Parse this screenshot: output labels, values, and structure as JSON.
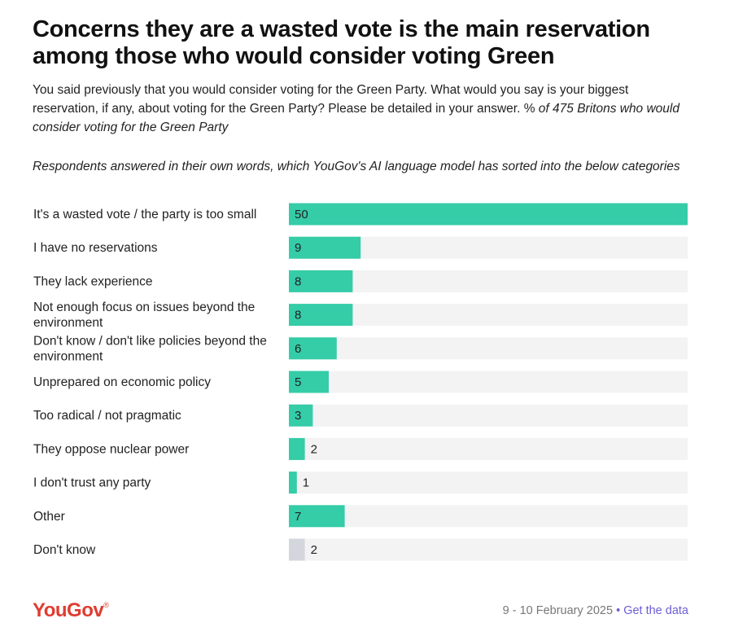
{
  "header": {
    "title_line1": "Concerns they are a wasted vote is the main reservation",
    "title_line2": "among those who would consider voting Green",
    "subtitle": "You said previously that you would consider voting for the Green Party. What would you say is your biggest reservation, if any, about voting for the Green Party? Please be detailed in your answer. % of 475 Britons who would consider voting for the Green Party",
    "subtitle_plain": "You said previously that you would consider voting for the Green Party. What would you say is your biggest reservation, if any, about voting for the Green Party? Please be detailed in your answer. % ",
    "subtitle_italic": "of 475 Britons who would consider voting for the Green Party",
    "note": "Respondents answered in their own words, which YouGov's AI language model has sorted into the below categories"
  },
  "chart_data": {
    "type": "bar",
    "orientation": "horizontal",
    "categories": [
      "It's a wasted vote / the party is too small",
      "I have no reservations",
      "They lack experience",
      "Not enough focus on issues beyond the environment",
      "Don't know / don't like policies beyond the environment",
      "Unprepared on economic policy",
      "Too radical / not pragmatic",
      "They oppose nuclear power",
      "I don't trust any party",
      "Other",
      "Don't know"
    ],
    "values": [
      50,
      9,
      8,
      8,
      6,
      5,
      3,
      2,
      1,
      7,
      2
    ],
    "xlim": [
      0,
      50
    ],
    "unit": "%",
    "grid": false,
    "colors": {
      "bar": "#35cca8",
      "bar_dont_know": "#d3d6dc",
      "track": "#f3f3f3",
      "label": "#222222",
      "value_inside": "#222222"
    }
  },
  "footer": {
    "brand": "YouGov",
    "date": "9 - 10 February 2025",
    "separator": "•",
    "link_label": "Get the data"
  }
}
